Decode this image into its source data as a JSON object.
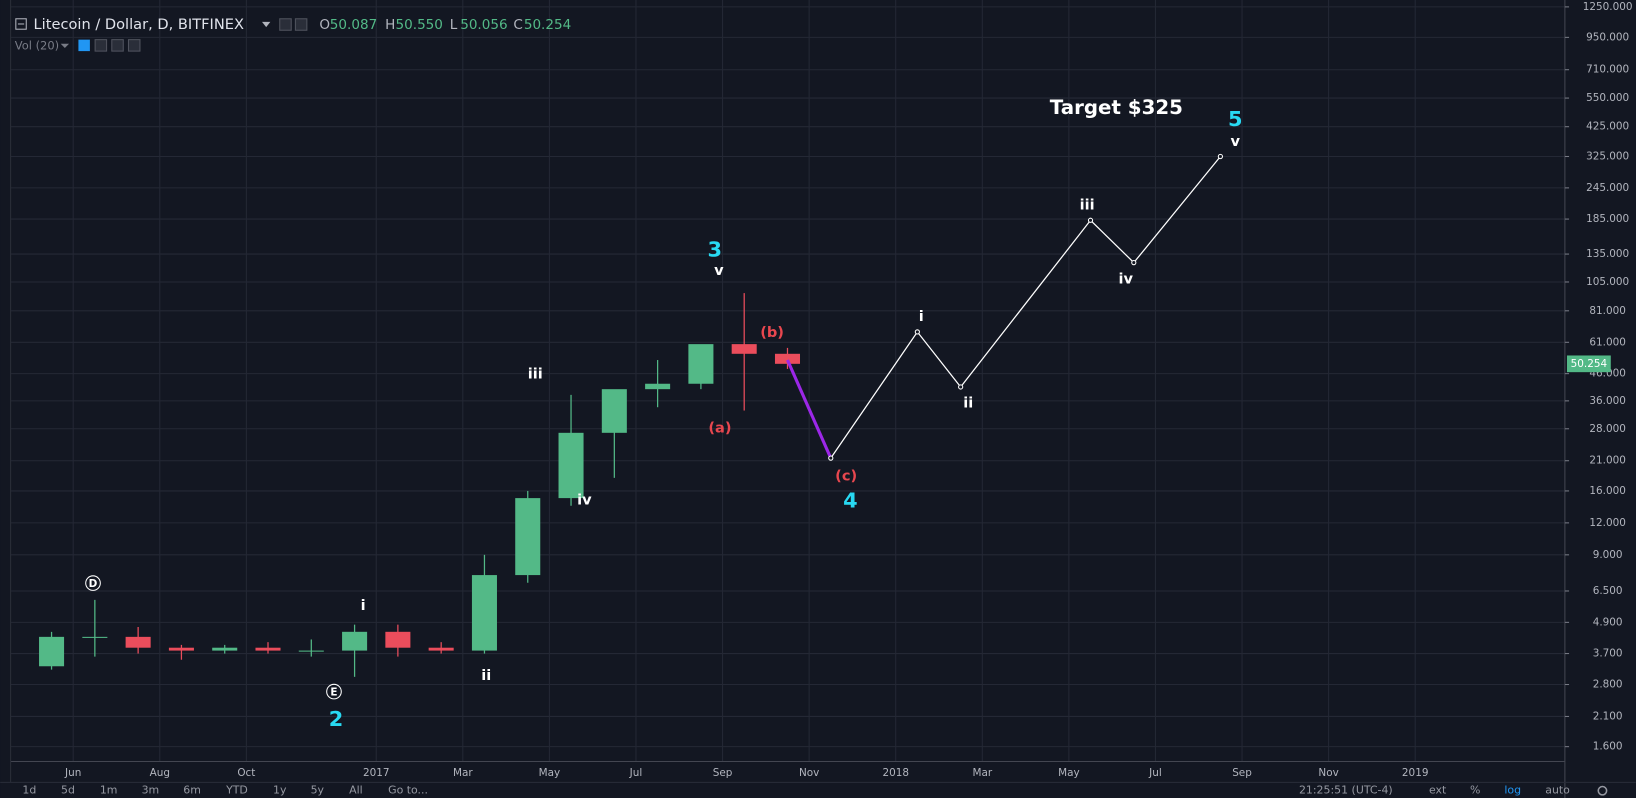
{
  "header": {
    "symbol": "Litecoin / Dollar, D, BITFINEX",
    "ohlc": [
      [
        "O",
        "50.087"
      ],
      [
        "H",
        "50.550"
      ],
      [
        "L",
        "50.056"
      ],
      [
        "C",
        "50.254"
      ]
    ],
    "volume": "Vol (20)"
  },
  "toolbar": {
    "ranges": [
      "1d",
      "5d",
      "1m",
      "3m",
      "6m",
      "YTD",
      "1y",
      "5y",
      "All",
      "Go to..."
    ],
    "clock": "21:25:51 (UTC-4)",
    "options": [
      "ext",
      "%",
      "log",
      "auto"
    ]
  },
  "chart_data": {
    "type": "candlestick",
    "log_scale": true,
    "grid": true,
    "up_color": "#53b987",
    "down_color": "#eb4d5c",
    "x": [
      "2016-05",
      "2016-06",
      "2016-07",
      "2016-08",
      "2016-09",
      "2016-10",
      "2016-11",
      "2016-12",
      "2017-01",
      "2017-02",
      "2017-03",
      "2017-04",
      "2017-05",
      "2017-06",
      "2017-07",
      "2017-08",
      "2017-09",
      "2017-10"
    ],
    "open": [
      3.3,
      4.3,
      4.3,
      3.9,
      3.8,
      3.9,
      3.8,
      3.8,
      4.5,
      3.9,
      3.8,
      7.5,
      15,
      27,
      40,
      42,
      60,
      55
    ],
    "high": [
      4.5,
      6.0,
      4.7,
      4.0,
      4.0,
      4.1,
      4.2,
      4.8,
      4.8,
      4.1,
      9.0,
      16,
      38,
      36,
      52,
      55,
      95,
      58
    ],
    "low": [
      3.2,
      3.6,
      3.7,
      3.5,
      3.7,
      3.7,
      3.6,
      3.0,
      3.6,
      3.7,
      3.7,
      7,
      14,
      18,
      34,
      40,
      33,
      48
    ],
    "close": [
      4.3,
      4.3,
      3.9,
      3.8,
      3.9,
      3.8,
      3.8,
      4.5,
      3.9,
      3.8,
      7.5,
      15,
      27,
      40,
      42,
      60,
      55,
      50.254
    ],
    "last_price": 50.254,
    "xlim": [
      "2016-05",
      "2019-04"
    ],
    "xticks": [
      {
        "value": "2016-06",
        "label": "Jun"
      },
      {
        "value": "2016-08",
        "label": "Aug"
      },
      {
        "value": "2016-10",
        "label": "Oct"
      },
      {
        "value": "2017-01",
        "label": "2017"
      },
      {
        "value": "2017-03",
        "label": "Mar"
      },
      {
        "value": "2017-05",
        "label": "May"
      },
      {
        "value": "2017-07",
        "label": "Jul"
      },
      {
        "value": "2017-09",
        "label": "Sep"
      },
      {
        "value": "2017-11",
        "label": "Nov"
      },
      {
        "value": "2018-01",
        "label": "2018"
      },
      {
        "value": "2018-03",
        "label": "Mar"
      },
      {
        "value": "2018-05",
        "label": "May"
      },
      {
        "value": "2018-07",
        "label": "Jul"
      },
      {
        "value": "2018-09",
        "label": "Sep"
      },
      {
        "value": "2018-11",
        "label": "Nov"
      },
      {
        "value": "2019-01",
        "label": "2019"
      }
    ],
    "ylim": [
      1.4,
      1330
    ],
    "yticks": [
      {
        "value": 1.6,
        "label": "1.600"
      },
      {
        "value": 2.1,
        "label": "2.100"
      },
      {
        "value": 2.8,
        "label": "2.800"
      },
      {
        "value": 3.7,
        "label": "3.700"
      },
      {
        "value": 4.9,
        "label": "4.900"
      },
      {
        "value": 6.5,
        "label": "6.500"
      },
      {
        "value": 9,
        "label": "9.000"
      },
      {
        "value": 12,
        "label": "12.000"
      },
      {
        "value": 16,
        "label": "16.000"
      },
      {
        "value": 21,
        "label": "21.000"
      },
      {
        "value": 28,
        "label": "28.000"
      },
      {
        "value": 36,
        "label": "36.000"
      },
      {
        "value": 46,
        "label": "46.000"
      },
      {
        "value": 61,
        "label": "61.000"
      },
      {
        "value": 81,
        "label": "81.000"
      },
      {
        "value": 105,
        "label": "105.000"
      },
      {
        "value": 135,
        "label": "135.000"
      },
      {
        "value": 185,
        "label": "185.000"
      },
      {
        "value": 245,
        "label": "245.000"
      },
      {
        "value": 325,
        "label": "325.000"
      },
      {
        "value": 425,
        "label": "425.000"
      },
      {
        "value": 550,
        "label": "550.000"
      },
      {
        "value": 710,
        "label": "710.000"
      },
      {
        "value": 950,
        "label": "950.000"
      },
      {
        "value": 1250,
        "label": "1250.000"
      }
    ],
    "overlays": [
      {
        "color": "#9c27e8",
        "x": [
          "2017-10",
          "2017-11"
        ],
        "values": [
          52,
          21.5
        ]
      },
      {
        "color": "#ffffff",
        "x": [
          "2017-11",
          "2018-01",
          "2018-02",
          "2018-05",
          "2018-06",
          "2018-08"
        ],
        "values": [
          21.5,
          67,
          40.8,
          183,
          125,
          325
        ]
      }
    ],
    "annotations": [
      {
        "text": "D",
        "color": "#ffffff",
        "circled": true
      },
      {
        "text": "E",
        "color": "#ffffff",
        "circled": true
      },
      {
        "text": "2",
        "color": "#28d9f2",
        "large": true
      },
      {
        "text": "i",
        "color": "#ffffff"
      },
      {
        "text": "ii",
        "color": "#ffffff"
      },
      {
        "text": "iii",
        "color": "#ffffff"
      },
      {
        "text": "iv",
        "color": "#ffffff"
      },
      {
        "text": "3",
        "color": "#28d9f2",
        "large": true
      },
      {
        "text": "v",
        "color": "#ffffff"
      },
      {
        "text": "(a)",
        "color": "#e8474f"
      },
      {
        "text": "(b)",
        "color": "#e8474f"
      },
      {
        "text": "(c)",
        "color": "#e8474f"
      },
      {
        "text": "4",
        "color": "#28d9f2",
        "large": true
      },
      {
        "text": "i",
        "color": "#ffffff"
      },
      {
        "text": "ii",
        "color": "#ffffff"
      },
      {
        "text": "iii",
        "color": "#ffffff"
      },
      {
        "text": "iv",
        "color": "#ffffff"
      },
      {
        "text": "v",
        "color": "#ffffff"
      },
      {
        "text": "5",
        "color": "#28d9f2",
        "large": true
      },
      {
        "text": "Target $325",
        "color": "#ffffff",
        "large": true
      }
    ]
  }
}
